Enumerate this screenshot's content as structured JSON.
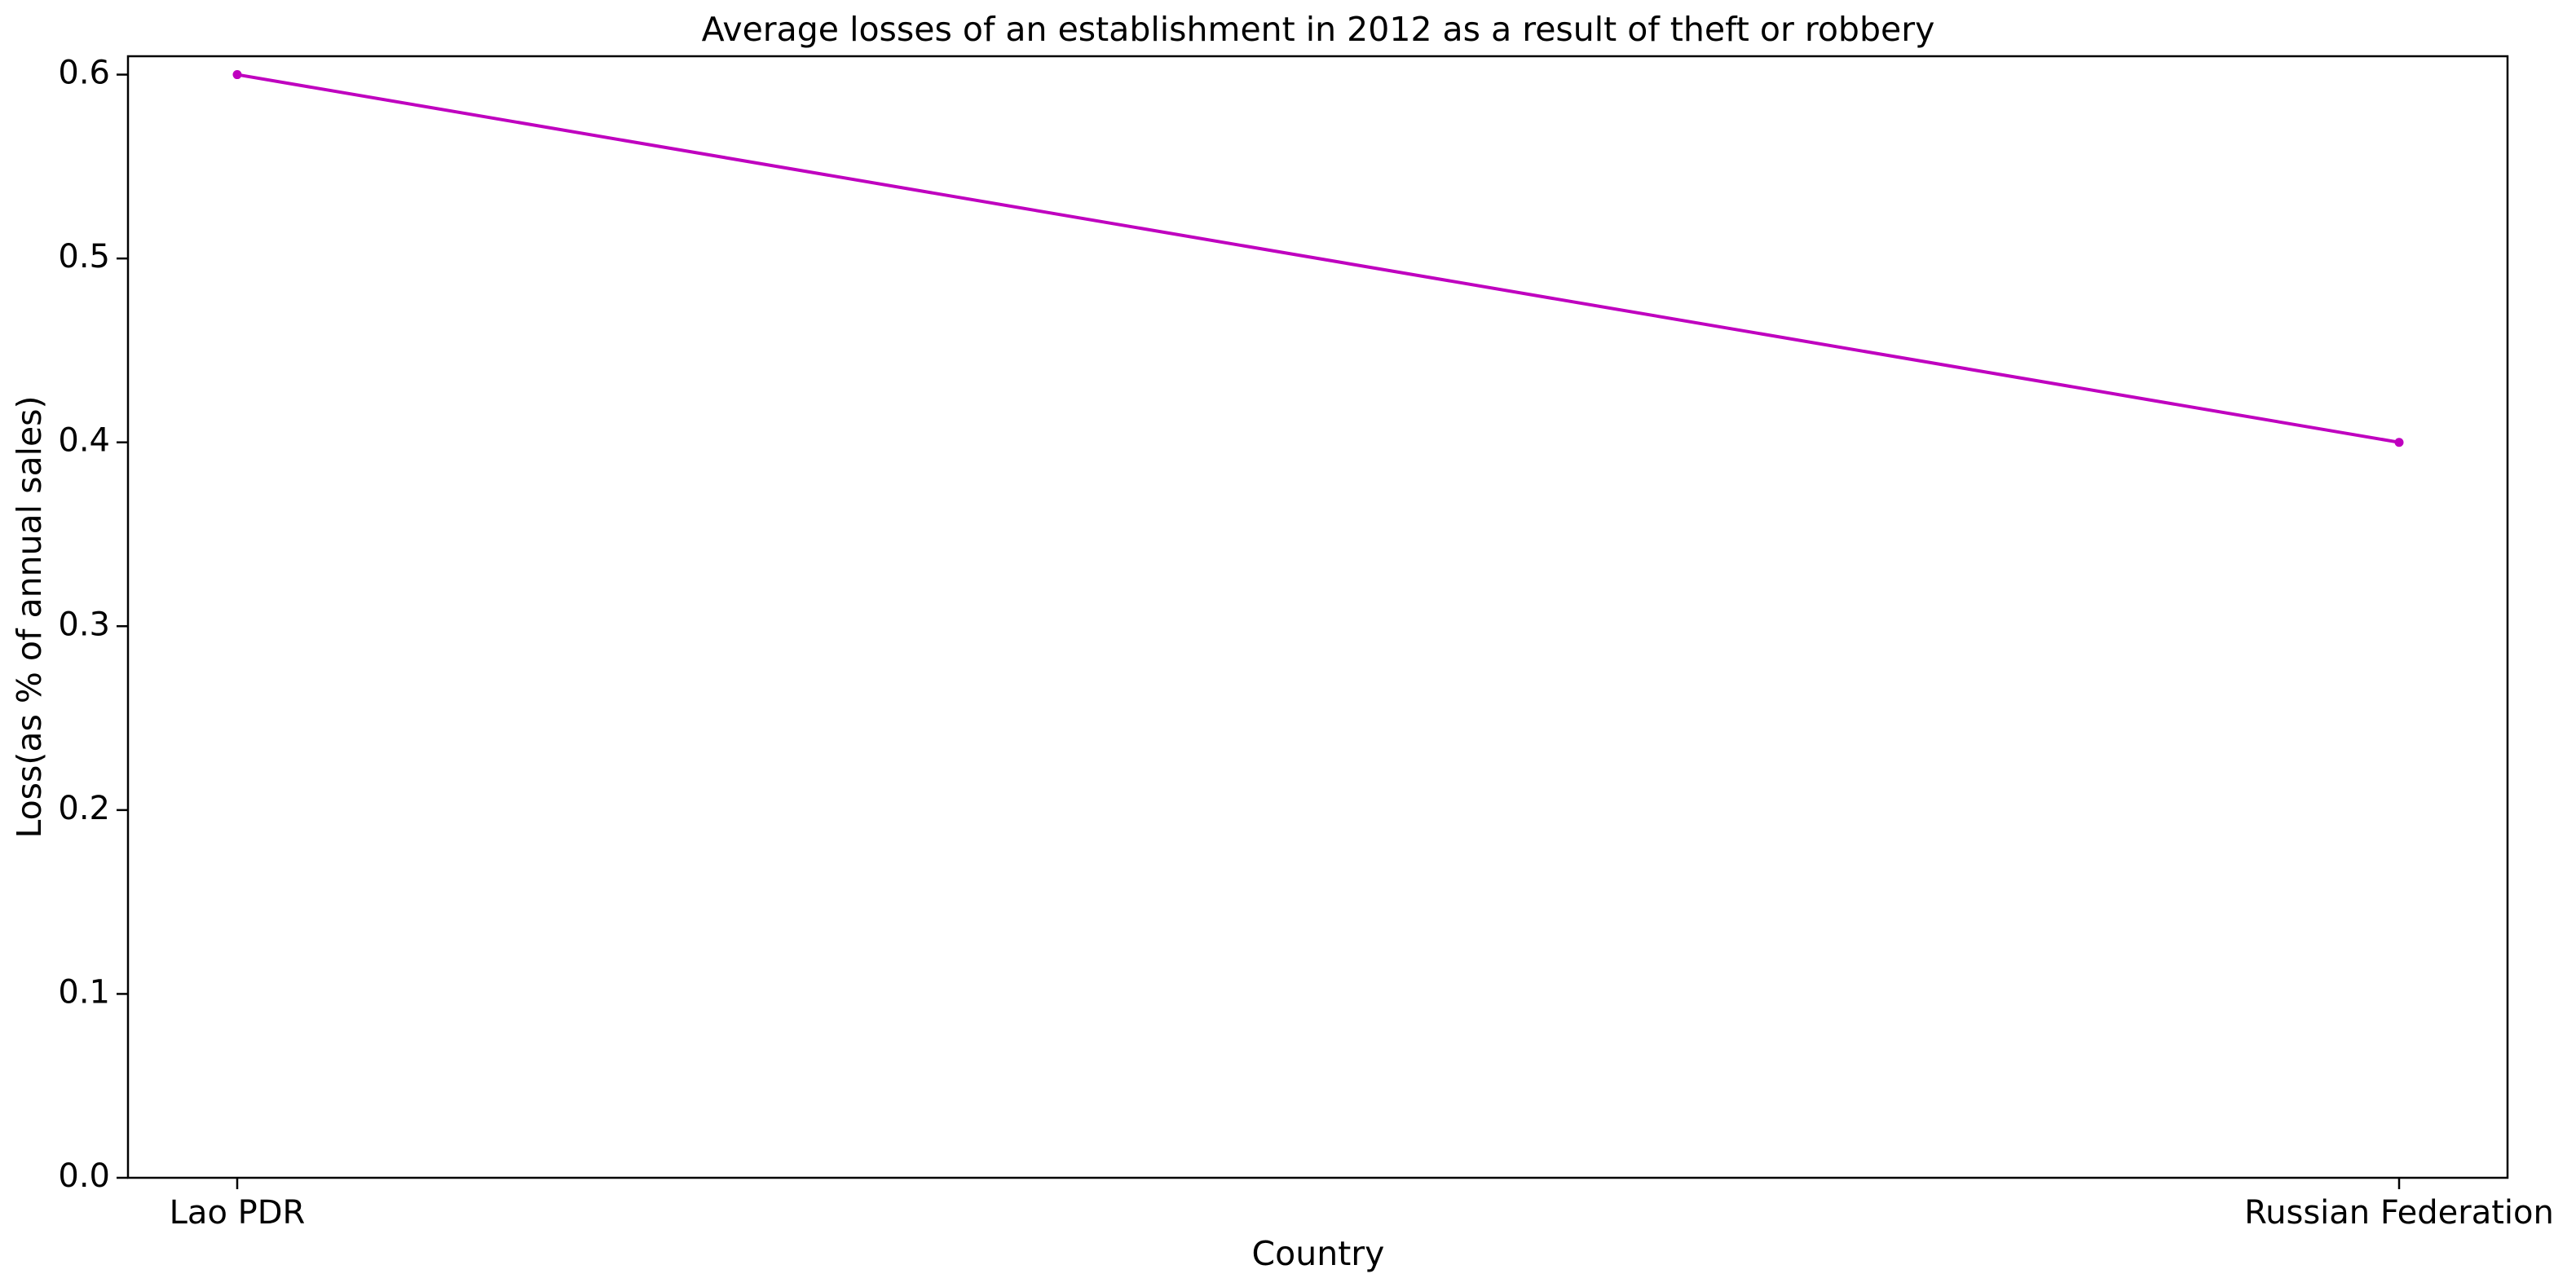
{
  "chart_data": {
    "type": "line",
    "title": "Average losses of an establishment in 2012 as a result of theft or robbery",
    "xlabel": "Country",
    "ylabel": "Loss(as % of annual sales)",
    "categories": [
      "Lao PDR",
      "Russian Federation"
    ],
    "series": [
      {
        "values": [
          0.6,
          0.4
        ],
        "color": "#bf00bf",
        "marker": "circle"
      }
    ],
    "ylim": [
      0,
      0.61
    ],
    "yticks": [
      0.0,
      0.1,
      0.2,
      0.3,
      0.4,
      0.5,
      0.6
    ],
    "ytick_labels": [
      "0.0",
      "0.1",
      "0.2",
      "0.3",
      "0.4",
      "0.5",
      "0.6"
    ],
    "grid": false,
    "legend": false
  }
}
